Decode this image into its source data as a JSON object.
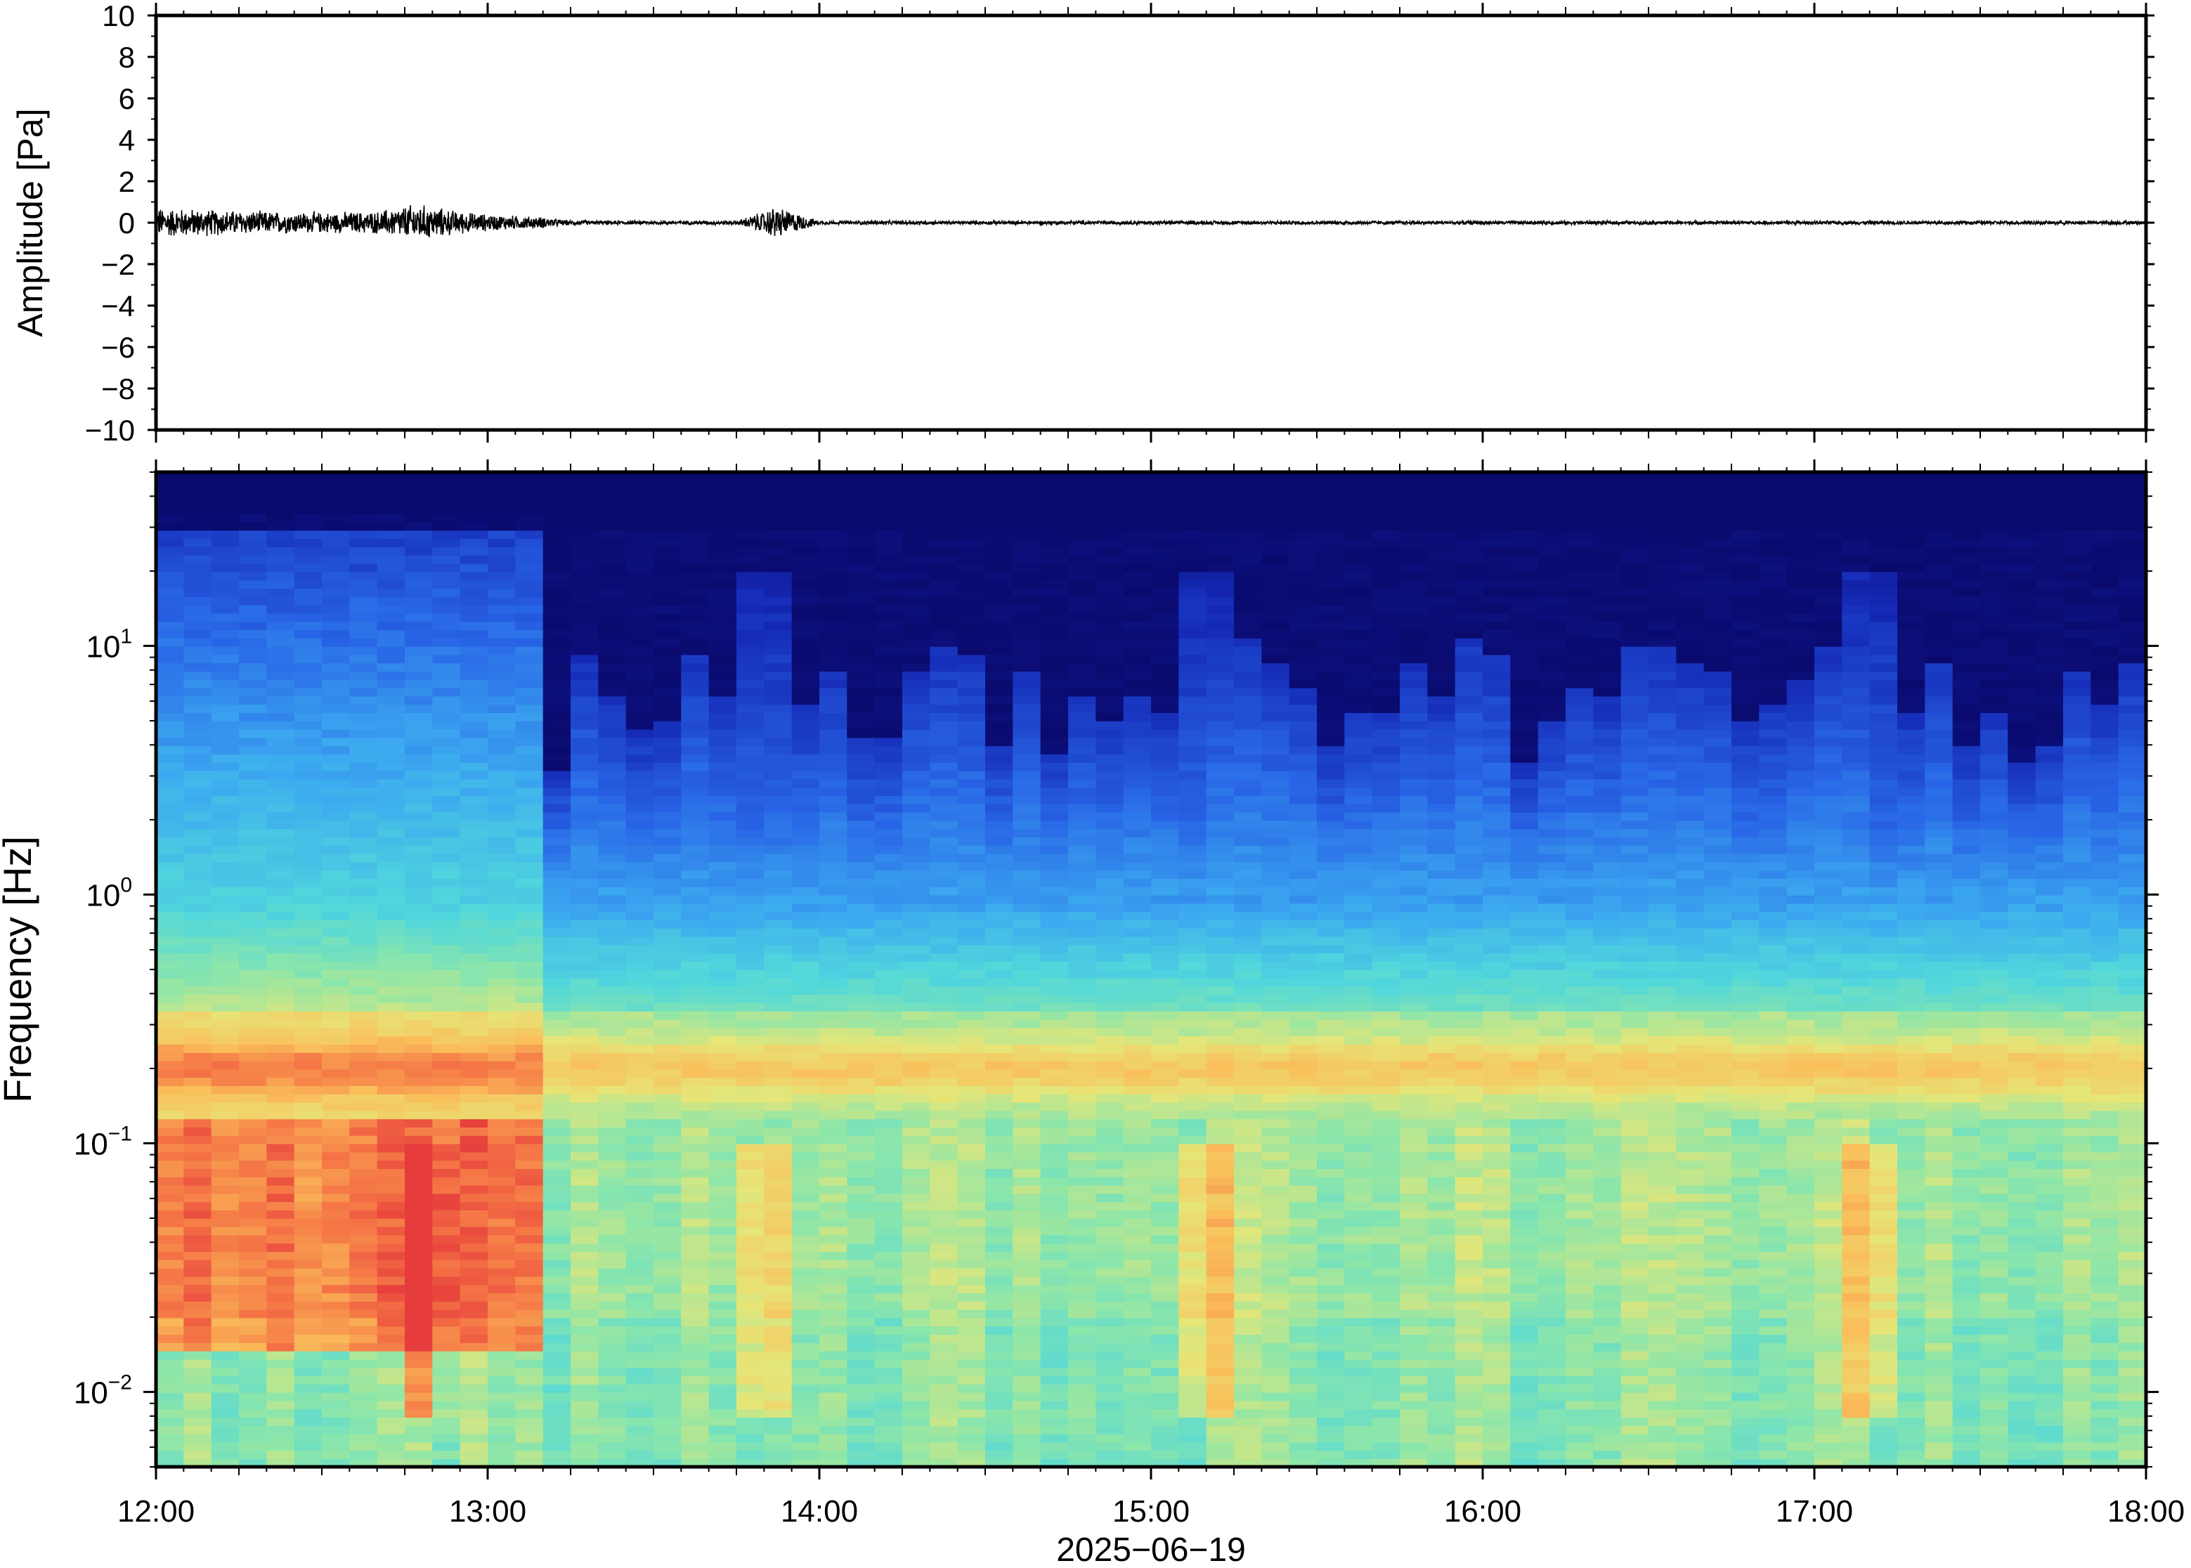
{
  "chart_data": [
    {
      "type": "line",
      "ylabel": "Amplitude [Pa]",
      "ylim": [
        -10,
        10
      ],
      "y_ticks": [
        "10",
        "8",
        "6",
        "4",
        "2",
        "0",
        "−2",
        "−4",
        "−6",
        "−8",
        "−10"
      ],
      "y_tick_values": [
        10,
        8,
        6,
        4,
        2,
        0,
        -2,
        -4,
        -6,
        -8,
        -10
      ],
      "xlim": [
        "12:00",
        "18:00"
      ],
      "grid": false,
      "envelope": {
        "x": [
          "12:00",
          "12:10",
          "12:20",
          "12:30",
          "12:40",
          "12:47",
          "12:55",
          "13:00",
          "13:10",
          "13:15",
          "13:30",
          "13:45",
          "13:50",
          "13:52",
          "14:00",
          "15:00",
          "16:00",
          "17:00",
          "18:00"
        ],
        "y_max": [
          0.8,
          0.7,
          0.6,
          0.55,
          0.6,
          1.0,
          0.6,
          0.45,
          0.3,
          0.12,
          0.1,
          0.12,
          0.6,
          0.9,
          0.1,
          0.1,
          0.1,
          0.1,
          0.1
        ]
      }
    },
    {
      "type": "heatmap",
      "ylabel": "Frequency [Hz]",
      "xlabel": "2025−06−19",
      "y_scale": "log",
      "ylim": [
        0.005,
        50
      ],
      "y_ticks": [
        {
          "base": "10",
          "exp": "−2",
          "value": 0.01
        },
        {
          "base": "10",
          "exp": "−1",
          "value": 0.1
        },
        {
          "base": "10",
          "exp": "0",
          "value": 1
        },
        {
          "base": "10",
          "exp": "1",
          "value": 10
        }
      ],
      "x_ticks": [
        "12:00",
        "13:00",
        "14:00",
        "15:00",
        "16:00",
        "17:00",
        "18:00"
      ],
      "colormap": "jet-like (dark blue low, red high)",
      "grid": false,
      "events": [
        {
          "time": "12:48",
          "label": ""
        },
        {
          "time": "13:50",
          "label": ""
        },
        {
          "time": "15:10",
          "label": ""
        },
        {
          "time": "17:10",
          "label": ""
        }
      ]
    }
  ]
}
